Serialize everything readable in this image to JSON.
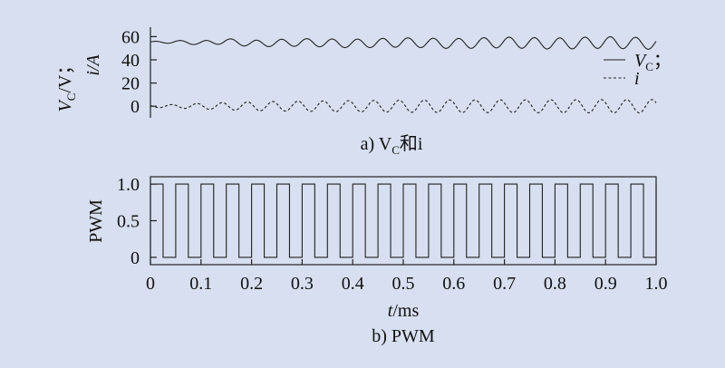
{
  "chart_data": [
    {
      "type": "line",
      "panel_caption": "a) V",
      "panel_caption_sub": "C",
      "panel_caption_tail": "和i",
      "ylabel_line1": "V",
      "ylabel_line1_sub": "C",
      "ylabel_line1_tail": "/V；",
      "ylabel_line2": "i/A",
      "ylim": [
        -10,
        65
      ],
      "yticks": [
        0,
        20,
        40,
        60
      ],
      "xlim": [
        0,
        1.0
      ],
      "grid": false,
      "legend_position": "right",
      "series": [
        {
          "name": "V",
          "name_sub": "C",
          "name_tail": "；",
          "style": "solid",
          "description_values": "oscillation around ~55 V, amplitude growing from ~1 V to ~5 V",
          "x": [
            0.0,
            0.05,
            0.1,
            0.15,
            0.2,
            0.3,
            0.4,
            0.5,
            0.6,
            0.7,
            0.8,
            0.9,
            1.0
          ],
          "y": [
            55,
            55.5,
            54.5,
            56,
            54,
            55,
            54,
            55,
            54,
            55,
            54,
            55,
            54
          ],
          "amplitude": [
            0.8,
            1.2,
            1.8,
            2.3,
            2.8,
            3.3,
            3.7,
            4.0,
            4.3,
            4.6,
            4.8,
            5.0,
            5.0
          ]
        },
        {
          "name": "i",
          "name_sub": "",
          "name_tail": "",
          "style": "dashed",
          "x": [
            0.0,
            0.05,
            0.1,
            0.15,
            0.2,
            0.3,
            0.4,
            0.5,
            0.6,
            0.7,
            0.8,
            0.9,
            1.0
          ],
          "y": [
            0,
            0,
            0,
            0,
            0,
            0,
            0,
            0,
            0,
            0,
            0,
            0,
            0
          ],
          "amplitude": [
            1.0,
            1.5,
            2.5,
            3.2,
            3.8,
            4.4,
            4.8,
            5.2,
            5.4,
            5.5,
            5.6,
            5.7,
            5.7
          ]
        }
      ],
      "cycles": 20
    },
    {
      "type": "line",
      "panel_caption": "b) PWM",
      "ylabel": "PWM",
      "xlabel_var": "t",
      "xlabel_unit": "/ms",
      "ylim": [
        -0.1,
        1.1
      ],
      "yticks": [
        "0",
        "0.5",
        "1.0"
      ],
      "xticks": [
        "0",
        "0.1",
        "0.2",
        "0.3",
        "0.4",
        "0.5",
        "0.6",
        "0.7",
        "0.8",
        "0.9",
        "1.0"
      ],
      "xlim": [
        0,
        1.0
      ],
      "grid": false,
      "series": [
        {
          "name": "",
          "style": "solid",
          "period": 0.05,
          "duty": 0.5,
          "high": 1.0,
          "low": 0.0
        }
      ]
    }
  ]
}
